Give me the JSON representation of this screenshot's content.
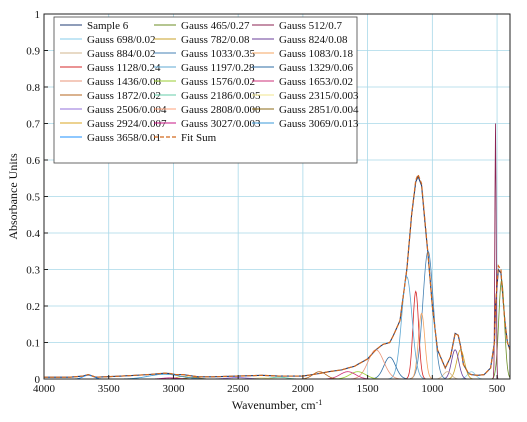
{
  "chart_data": {
    "type": "line",
    "xlabel": "Wavenumber, cm",
    "xlabel_sup": "-1",
    "ylabel": "Absorbance Units",
    "xlim": [
      4000,
      400
    ],
    "ylim": [
      0,
      1
    ],
    "x_ticks": [
      4000,
      3500,
      3000,
      2500,
      2000,
      1500,
      1000,
      500
    ],
    "y_ticks": [
      0,
      0.1,
      0.2,
      0.3,
      0.4,
      0.5,
      0.6,
      0.7,
      0.8,
      0.9,
      1
    ],
    "y_tick_labels": [
      "0",
      "0.1",
      "0.2",
      "0.3",
      "0.4",
      "0.5",
      "0.6",
      "0.7",
      "0.8",
      "0.9",
      "1"
    ],
    "grid": true,
    "legend_position": "top-left",
    "series": [
      {
        "name": "Sample 6",
        "color": "#1f3b73",
        "dash": false,
        "x": [
          4000,
          3800,
          3700,
          3658,
          3600,
          3400,
          3200,
          3100,
          3069,
          3027,
          2980,
          2924,
          2851,
          2808,
          2700,
          2506,
          2315,
          2186,
          2000,
          1872,
          1800,
          1700,
          1653,
          1600,
          1576,
          1500,
          1436,
          1400,
          1380,
          1329,
          1300,
          1250,
          1197,
          1160,
          1128,
          1110,
          1083,
          1060,
          1033,
          1000,
          960,
          900,
          860,
          824,
          800,
          782,
          760,
          720,
          698,
          650,
          600,
          550,
          520,
          512,
          490,
          470,
          465,
          440,
          420,
          400
        ],
        "y": [
          0.005,
          0.005,
          0.008,
          0.012,
          0.005,
          0.008,
          0.012,
          0.015,
          0.016,
          0.015,
          0.012,
          0.012,
          0.008,
          0.006,
          0.006,
          0.008,
          0.01,
          0.008,
          0.008,
          0.015,
          0.02,
          0.025,
          0.03,
          0.035,
          0.04,
          0.055,
          0.08,
          0.09,
          0.095,
          0.1,
          0.12,
          0.16,
          0.3,
          0.45,
          0.54,
          0.555,
          0.53,
          0.44,
          0.34,
          0.2,
          0.08,
          0.03,
          0.06,
          0.125,
          0.12,
          0.09,
          0.04,
          0.015,
          0.012,
          0.01,
          0.012,
          0.03,
          0.1,
          0.2,
          0.3,
          0.29,
          0.27,
          0.16,
          0.1,
          0.08
        ]
      },
      {
        "name": "Gauss 465/0.27",
        "color": "#6b8e23",
        "dash": false,
        "gauss": [
          465,
          0.27,
          22
        ]
      },
      {
        "name": "Gauss 512/0.7",
        "color": "#8b2252",
        "dash": false,
        "gauss": [
          512,
          0.7,
          5
        ]
      },
      {
        "name": "Gauss 698/0.02",
        "color": "#87ceeb",
        "dash": false,
        "gauss": [
          698,
          0.02,
          30
        ]
      },
      {
        "name": "Gauss 782/0.08",
        "color": "#c9a227",
        "dash": false,
        "gauss": [
          782,
          0.08,
          30
        ]
      },
      {
        "name": "Gauss 824/0.08",
        "color": "#6a3d9a",
        "dash": false,
        "gauss": [
          824,
          0.08,
          28
        ]
      },
      {
        "name": "Gauss 884/0.02",
        "color": "#d2b48c",
        "dash": false,
        "gauss": [
          884,
          0.02,
          30
        ]
      },
      {
        "name": "Gauss 1033/0.35",
        "color": "#4682b4",
        "dash": false,
        "gauss": [
          1033,
          0.35,
          40
        ]
      },
      {
        "name": "Gauss 1083/0.18",
        "color": "#f4a460",
        "dash": false,
        "gauss": [
          1083,
          0.18,
          25
        ]
      },
      {
        "name": "Gauss 1128/0.24",
        "color": "#d62728",
        "dash": false,
        "gauss": [
          1128,
          0.24,
          22
        ]
      },
      {
        "name": "Gauss 1197/0.28",
        "color": "#5fa8d3",
        "dash": false,
        "gauss": [
          1197,
          0.28,
          40
        ]
      },
      {
        "name": "Gauss 1329/0.06",
        "color": "#2e6da4",
        "dash": false,
        "gauss": [
          1329,
          0.06,
          45
        ]
      },
      {
        "name": "Gauss 1436/0.08",
        "color": "#e9967a",
        "dash": false,
        "gauss": [
          1436,
          0.08,
          60
        ]
      },
      {
        "name": "Gauss 1576/0.02",
        "color": "#9acd32",
        "dash": false,
        "gauss": [
          1576,
          0.02,
          60
        ]
      },
      {
        "name": "Gauss 1653/0.02",
        "color": "#cd3278",
        "dash": false,
        "gauss": [
          1653,
          0.02,
          60
        ]
      },
      {
        "name": "Gauss 1872/0.02",
        "color": "#b5651d",
        "dash": false,
        "gauss": [
          1872,
          0.02,
          50
        ]
      },
      {
        "name": "Gauss 2186/0.005",
        "color": "#66cdaa",
        "dash": false,
        "gauss": [
          2186,
          0.005,
          60
        ]
      },
      {
        "name": "Gauss 2315/0.003",
        "color": "#f0e68c",
        "dash": false,
        "gauss": [
          2315,
          0.003,
          60
        ]
      },
      {
        "name": "Gauss 2506/0.004",
        "color": "#9370db",
        "dash": false,
        "gauss": [
          2506,
          0.004,
          80
        ]
      },
      {
        "name": "Gauss 2808/0.000",
        "color": "#ffa07a",
        "dash": false,
        "gauss": [
          2808,
          0.0,
          50
        ]
      },
      {
        "name": "Gauss 2851/0.004",
        "color": "#8b6914",
        "dash": false,
        "gauss": [
          2851,
          0.004,
          50
        ]
      },
      {
        "name": "Gauss 2924/0.007",
        "color": "#daa520",
        "dash": false,
        "gauss": [
          2924,
          0.007,
          50
        ]
      },
      {
        "name": "Gauss 3027/0.003",
        "color": "#c71585",
        "dash": false,
        "gauss": [
          3027,
          0.003,
          60
        ]
      },
      {
        "name": "Gauss 3069/0.013",
        "color": "#3a9ad9",
        "dash": false,
        "gauss": [
          3069,
          0.013,
          120
        ]
      },
      {
        "name": "Gauss 3658/0.01",
        "color": "#1e90ff",
        "dash": false,
        "gauss": [
          3658,
          0.01,
          40
        ]
      },
      {
        "name": "Fit Sum",
        "color": "#d2691e",
        "dash": true,
        "x": [
          4000,
          3800,
          3700,
          3658,
          3600,
          3400,
          3200,
          3100,
          3069,
          3027,
          2980,
          2924,
          2851,
          2808,
          2700,
          2506,
          2315,
          2186,
          2000,
          1872,
          1800,
          1700,
          1653,
          1600,
          1576,
          1500,
          1436,
          1400,
          1380,
          1329,
          1300,
          1250,
          1197,
          1160,
          1128,
          1110,
          1083,
          1060,
          1033,
          1000,
          960,
          900,
          860,
          824,
          800,
          782,
          760,
          720,
          698,
          650,
          600,
          550,
          520,
          512,
          490,
          470,
          465,
          440,
          420,
          400
        ],
        "y": [
          0.005,
          0.005,
          0.008,
          0.012,
          0.005,
          0.008,
          0.012,
          0.015,
          0.016,
          0.015,
          0.012,
          0.012,
          0.008,
          0.006,
          0.006,
          0.008,
          0.01,
          0.008,
          0.008,
          0.015,
          0.02,
          0.025,
          0.03,
          0.035,
          0.04,
          0.055,
          0.08,
          0.09,
          0.095,
          0.1,
          0.12,
          0.16,
          0.3,
          0.45,
          0.545,
          0.56,
          0.535,
          0.445,
          0.34,
          0.2,
          0.08,
          0.03,
          0.06,
          0.125,
          0.12,
          0.09,
          0.04,
          0.015,
          0.012,
          0.01,
          0.012,
          0.03,
          0.1,
          0.2,
          0.31,
          0.3,
          0.27,
          0.16,
          0.1,
          0.08
        ]
      }
    ]
  }
}
